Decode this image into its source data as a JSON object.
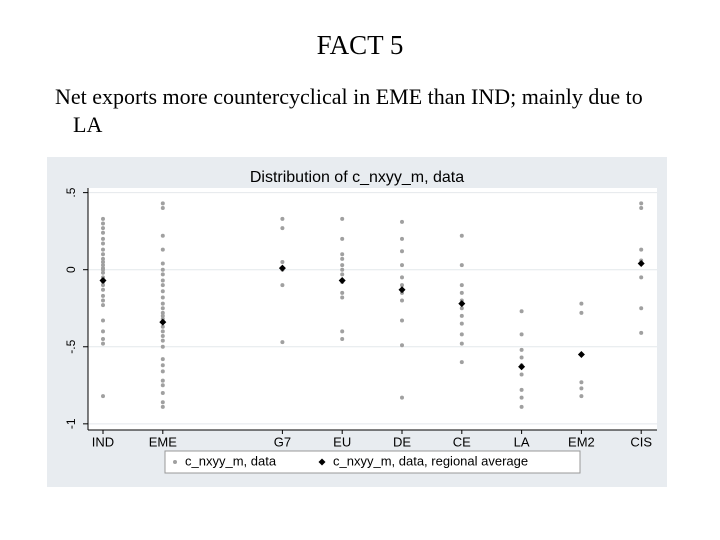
{
  "slide": {
    "title": "FACT 5",
    "text": "Net exports more countercyclical in EME than IND; mainly due to LA"
  },
  "chart_data": {
    "type": "strip",
    "title": "Distribution of c_nxyy_m, data",
    "categories": [
      "IND",
      "EME",
      null,
      "G7",
      "EU",
      "DE",
      "CE",
      "LA",
      "EM2",
      "CIS"
    ],
    "ylim": [
      -1.04,
      0.53
    ],
    "yticks": [
      {
        "value": 0.5,
        "label": ".5"
      },
      0,
      {
        "value": -0.5,
        "label": "-.5"
      },
      -1
    ],
    "grid": true,
    "series": [
      {
        "name": "c_nxyy_m, data",
        "color": "#a0a0a0",
        "values": [
          [
            0.33,
            0.3,
            0.27,
            0.24,
            0.2,
            0.17,
            0.13,
            0.1,
            0.07,
            0.05,
            0.03,
            0.01,
            0,
            -0.02,
            -0.05,
            -0.08,
            -0.1,
            -0.13,
            -0.17,
            -0.2,
            -0.23,
            -0.33,
            -0.4,
            -0.45,
            -0.48,
            -0.82
          ],
          [
            0.43,
            0.4,
            0.22,
            0.13,
            0.04,
            0,
            -0.03,
            -0.07,
            -0.1,
            -0.14,
            -0.18,
            -0.22,
            -0.25,
            -0.28,
            -0.3,
            -0.32,
            -0.37,
            -0.4,
            -0.43,
            -0.46,
            -0.5,
            -0.58,
            -0.62,
            -0.66,
            -0.72,
            -0.75,
            -0.8,
            -0.86,
            -0.89
          ],
          null,
          [
            0.33,
            0.27,
            0.05,
            0,
            -0.1,
            -0.47
          ],
          [
            0.33,
            0.2,
            0.1,
            0.07,
            0.03,
            0,
            -0.03,
            -0.08,
            -0.15,
            -0.18,
            -0.4,
            -0.45
          ],
          [
            0.31,
            0.2,
            0.12,
            0.03,
            -0.05,
            -0.1,
            -0.15,
            -0.2,
            -0.33,
            -0.49,
            -0.83
          ],
          [
            0.22,
            0.03,
            -0.1,
            -0.15,
            -0.2,
            -0.25,
            -0.3,
            -0.35,
            -0.42,
            -0.48,
            -0.6
          ],
          [
            -0.27,
            -0.42,
            -0.52,
            -0.57,
            -0.62,
            -0.68,
            -0.78,
            -0.83,
            -0.89
          ],
          [
            -0.22,
            -0.28,
            -0.73,
            -0.77,
            -0.82
          ],
          [
            0.43,
            0.4,
            0.13,
            0.06,
            -0.05,
            -0.25,
            -0.41
          ]
        ]
      },
      {
        "name": "c_nxyy_m, data, regional average",
        "color": "#000000",
        "values": [
          -0.07,
          -0.34,
          null,
          0.01,
          -0.07,
          -0.13,
          -0.22,
          -0.63,
          -0.55,
          0.04
        ]
      }
    ]
  }
}
